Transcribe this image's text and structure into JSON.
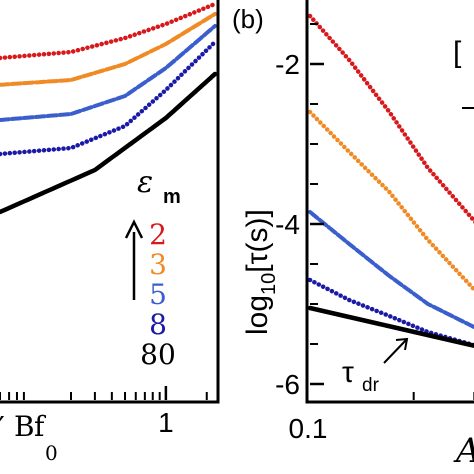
{
  "chart_data": [
    {
      "type": "line",
      "x_scale": "log",
      "xlim": [
        0.06,
        2.3
      ],
      "ylim": [
        0,
        1
      ],
      "x_ticks": [
        {
          "value": 1,
          "label": "1"
        }
      ],
      "xlabel_visible": "BF0",
      "series": [
        {
          "name": "2",
          "color": "#d7191c",
          "style": "dotted",
          "x": [
            0.06,
            0.2,
            0.5,
            1,
            2.3
          ],
          "y": [
            0.855,
            0.87,
            0.905,
            0.94,
            0.99
          ]
        },
        {
          "name": "3",
          "color": "#f08a24",
          "style": "dashed",
          "x": [
            0.06,
            0.2,
            0.5,
            1,
            2.3
          ],
          "y": [
            0.788,
            0.8,
            0.84,
            0.89,
            0.965
          ]
        },
        {
          "name": "5",
          "color": "#3a5fcd",
          "style": "dashed",
          "x": [
            0.06,
            0.2,
            0.5,
            1,
            2.3
          ],
          "y": [
            0.7,
            0.715,
            0.76,
            0.83,
            0.935
          ]
        },
        {
          "name": "8",
          "color": "#1a1aa6",
          "style": "dotted",
          "x": [
            0.06,
            0.2,
            0.5,
            1,
            2.3
          ],
          "y": [
            0.615,
            0.63,
            0.685,
            0.775,
            0.895
          ]
        },
        {
          "name": "80",
          "color": "#000000",
          "style": "solid",
          "x": [
            0.06,
            0.3,
            1,
            2.3
          ],
          "y": [
            0.47,
            0.575,
            0.705,
            0.815
          ]
        }
      ],
      "legend": {
        "title_symbol": "ε",
        "title_subscript": "m",
        "entries": [
          "2",
          "3",
          "5",
          "8",
          "80"
        ],
        "placement": "right"
      }
    },
    {
      "panel_label": "(b)",
      "type": "line",
      "x_scale": "log",
      "xlim": [
        0.1,
        0.32
      ],
      "ylim": [
        -6.2,
        -1.2
      ],
      "x_ticks": [
        {
          "value": 0.1,
          "label": "0.1"
        }
      ],
      "y_ticks": [
        {
          "value": -2,
          "label": "-2"
        },
        {
          "value": -4,
          "label": "-4"
        },
        {
          "value": -6,
          "label": "-6"
        }
      ],
      "ylabel_parts": {
        "pre": "log",
        "sub": "10",
        "post": "[τ(s)]"
      },
      "xlabel_visible": "A",
      "series": [
        {
          "color": "#d7191c",
          "style": "dotted",
          "x": [
            0.1,
            0.13,
            0.17,
            0.22,
            0.32
          ],
          "y": [
            -1.4,
            -1.95,
            -2.6,
            -3.3,
            -4.1
          ]
        },
        {
          "color": "#f08a24",
          "style": "dotted",
          "x": [
            0.1,
            0.13,
            0.17,
            0.22,
            0.32
          ],
          "y": [
            -2.6,
            -3.1,
            -3.6,
            -4.2,
            -4.95
          ]
        },
        {
          "color": "#3a5fcd",
          "style": "dashed",
          "x": [
            0.1,
            0.13,
            0.17,
            0.22,
            0.32
          ],
          "y": [
            -3.85,
            -4.25,
            -4.65,
            -5.0,
            -5.35
          ]
        },
        {
          "color": "#1a1aa6",
          "style": "dotted",
          "x": [
            0.1,
            0.13,
            0.17,
            0.22,
            0.32
          ],
          "y": [
            -4.7,
            -4.95,
            -5.15,
            -5.35,
            -5.55
          ]
        },
        {
          "name": "τdr",
          "color": "#000000",
          "style": "solid",
          "x": [
            0.1,
            0.32
          ],
          "y": [
            -5.05,
            -5.55
          ]
        }
      ],
      "annotation": {
        "symbol": "τ",
        "subscript": "dr"
      }
    }
  ],
  "inset_visible": {
    "bracket": "["
  }
}
